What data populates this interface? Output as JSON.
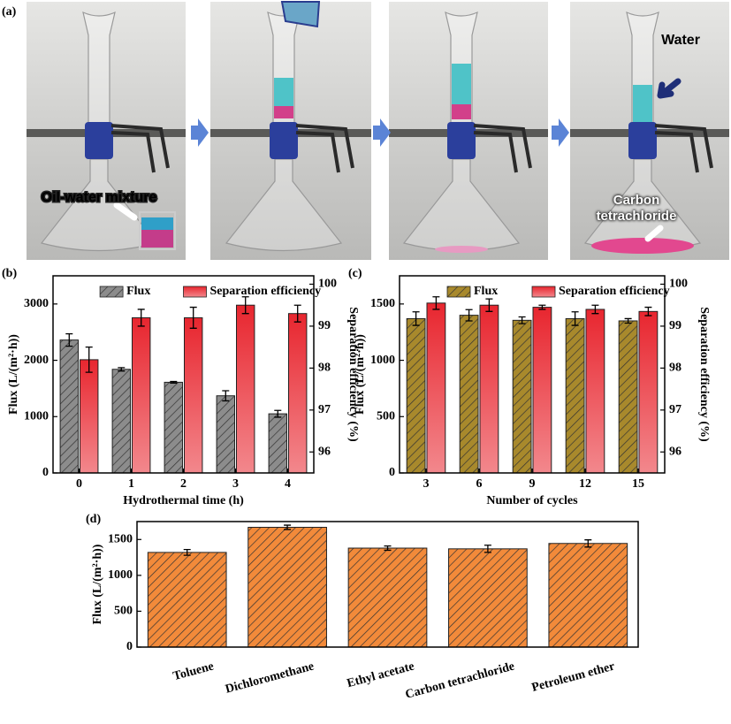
{
  "panel_a": {
    "label": "(a)",
    "annotations": [
      "Oil-water mixture",
      "Water",
      "Carbon tetrachloride"
    ]
  },
  "chart_data": [
    {
      "type": "bar",
      "label": "(b)",
      "xlabel": "Hydrothermal time (h)",
      "ylabel": "Flux (L/(m²·h))",
      "y2label": "Separation efficiency (%)",
      "categories": [
        "0",
        "1",
        "2",
        "3",
        "4"
      ],
      "series": [
        {
          "name": "Flux",
          "color": "#8c8c8c",
          "hatch": true,
          "values": [
            2360,
            1840,
            1610,
            1370,
            1050
          ],
          "errors": [
            110,
            30,
            15,
            90,
            60
          ]
        },
        {
          "name": "Separation efficiency",
          "color": "#e8262f",
          "axis": "y2",
          "values": [
            98.2,
            99.2,
            99.2,
            99.5,
            99.3
          ],
          "errors": [
            0.3,
            0.2,
            0.25,
            0.2,
            0.2
          ]
        }
      ],
      "ylim": [
        0,
        3500
      ],
      "yticks": [
        0,
        1000,
        2000,
        3000
      ],
      "y2lim": [
        95.5,
        100.2
      ],
      "y2ticks": [
        96,
        97,
        98,
        99,
        100
      ]
    },
    {
      "type": "bar",
      "label": "(c)",
      "xlabel": "Number of cycles",
      "ylabel": "Flux (L/(m²·h))",
      "y2label": "Separation efficiency (%)",
      "categories": [
        "3",
        "6",
        "9",
        "12",
        "15"
      ],
      "series": [
        {
          "name": "Flux",
          "color": "#a8892c",
          "hatch": true,
          "values": [
            1370,
            1400,
            1355,
            1370,
            1350
          ],
          "errors": [
            60,
            50,
            30,
            60,
            20
          ]
        },
        {
          "name": "Separation efficiency",
          "color": "#e8262f",
          "axis": "y2",
          "values": [
            99.55,
            99.5,
            99.45,
            99.4,
            99.35
          ],
          "errors": [
            0.15,
            0.15,
            0.05,
            0.1,
            0.1
          ]
        }
      ],
      "ylim": [
        0,
        1750
      ],
      "yticks": [
        0,
        500,
        1000,
        1500
      ],
      "y2lim": [
        95.5,
        100.2
      ],
      "y2ticks": [
        96,
        97,
        98,
        99,
        100
      ]
    },
    {
      "type": "bar",
      "label": "(d)",
      "ylabel": "Flux (L/(m²·h))",
      "categories": [
        "Toluene",
        "Dichloromethane",
        "Ethyl acetate",
        "Carbon tetrachloride",
        "Petroleum ether"
      ],
      "series": [
        {
          "name": "Flux",
          "color": "#f28a3a",
          "hatch": true,
          "values": [
            1320,
            1670,
            1380,
            1370,
            1445
          ],
          "errors": [
            40,
            30,
            30,
            50,
            50
          ]
        }
      ],
      "ylim": [
        0,
        1750
      ],
      "yticks": [
        0,
        500,
        1000,
        1500
      ]
    }
  ]
}
